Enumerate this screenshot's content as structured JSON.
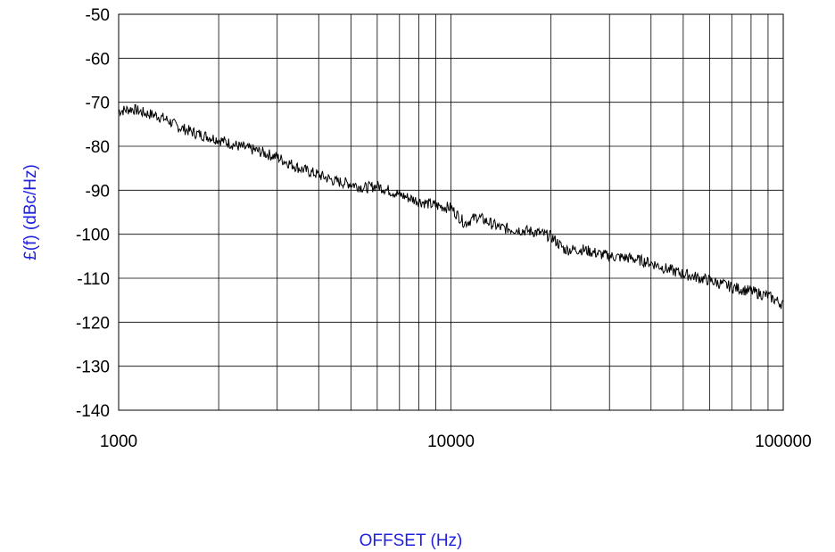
{
  "chart_data": {
    "type": "line",
    "title": "",
    "xlabel": "OFFSET (Hz)",
    "ylabel": "£(f) (dBc/Hz)",
    "x_scale": "log",
    "xlim": [
      1000,
      100000
    ],
    "ylim": [
      -140,
      -50
    ],
    "x_ticks": [
      1000,
      10000,
      100000
    ],
    "x_tick_labels": [
      "1000",
      "10000",
      "100000"
    ],
    "y_ticks": [
      -50,
      -60,
      -70,
      -80,
      -90,
      -100,
      -110,
      -120,
      -130,
      -140
    ],
    "y_tick_labels": [
      "-50",
      "-60",
      "-70",
      "-80",
      "-90",
      "-100",
      "-110",
      "-120",
      "-130",
      "-140"
    ],
    "grid": true,
    "legend": "none",
    "colors": {
      "line": "#000000",
      "axis_title": "#1f1fdf",
      "grid": "#000000"
    },
    "series": [
      {
        "x": [
          1000,
          1100,
          1200,
          1300,
          1400,
          1500,
          1700,
          2000,
          2300,
          2600,
          3000,
          3500,
          4000,
          4500,
          5000,
          5500,
          6000,
          7000,
          8000,
          9000,
          10000,
          11000,
          12000,
          14000,
          16000,
          18000,
          20000,
          22000,
          25000,
          28000,
          30000,
          35000,
          40000,
          45000,
          50000,
          60000,
          70000,
          80000,
          90000,
          100000
        ],
        "y": [
          -72,
          -71.5,
          -72.5,
          -73,
          -74,
          -75.5,
          -77,
          -78.5,
          -80,
          -81,
          -82.5,
          -85,
          -86.5,
          -88,
          -88.5,
          -89.5,
          -89,
          -91,
          -92.5,
          -93.5,
          -94,
          -97.5,
          -96,
          -98.5,
          -99,
          -99.5,
          -100.5,
          -103.5,
          -103.5,
          -104.5,
          -105,
          -105.5,
          -106.5,
          -108,
          -109,
          -110.5,
          -112,
          -113,
          -114,
          -116
        ]
      }
    ]
  }
}
